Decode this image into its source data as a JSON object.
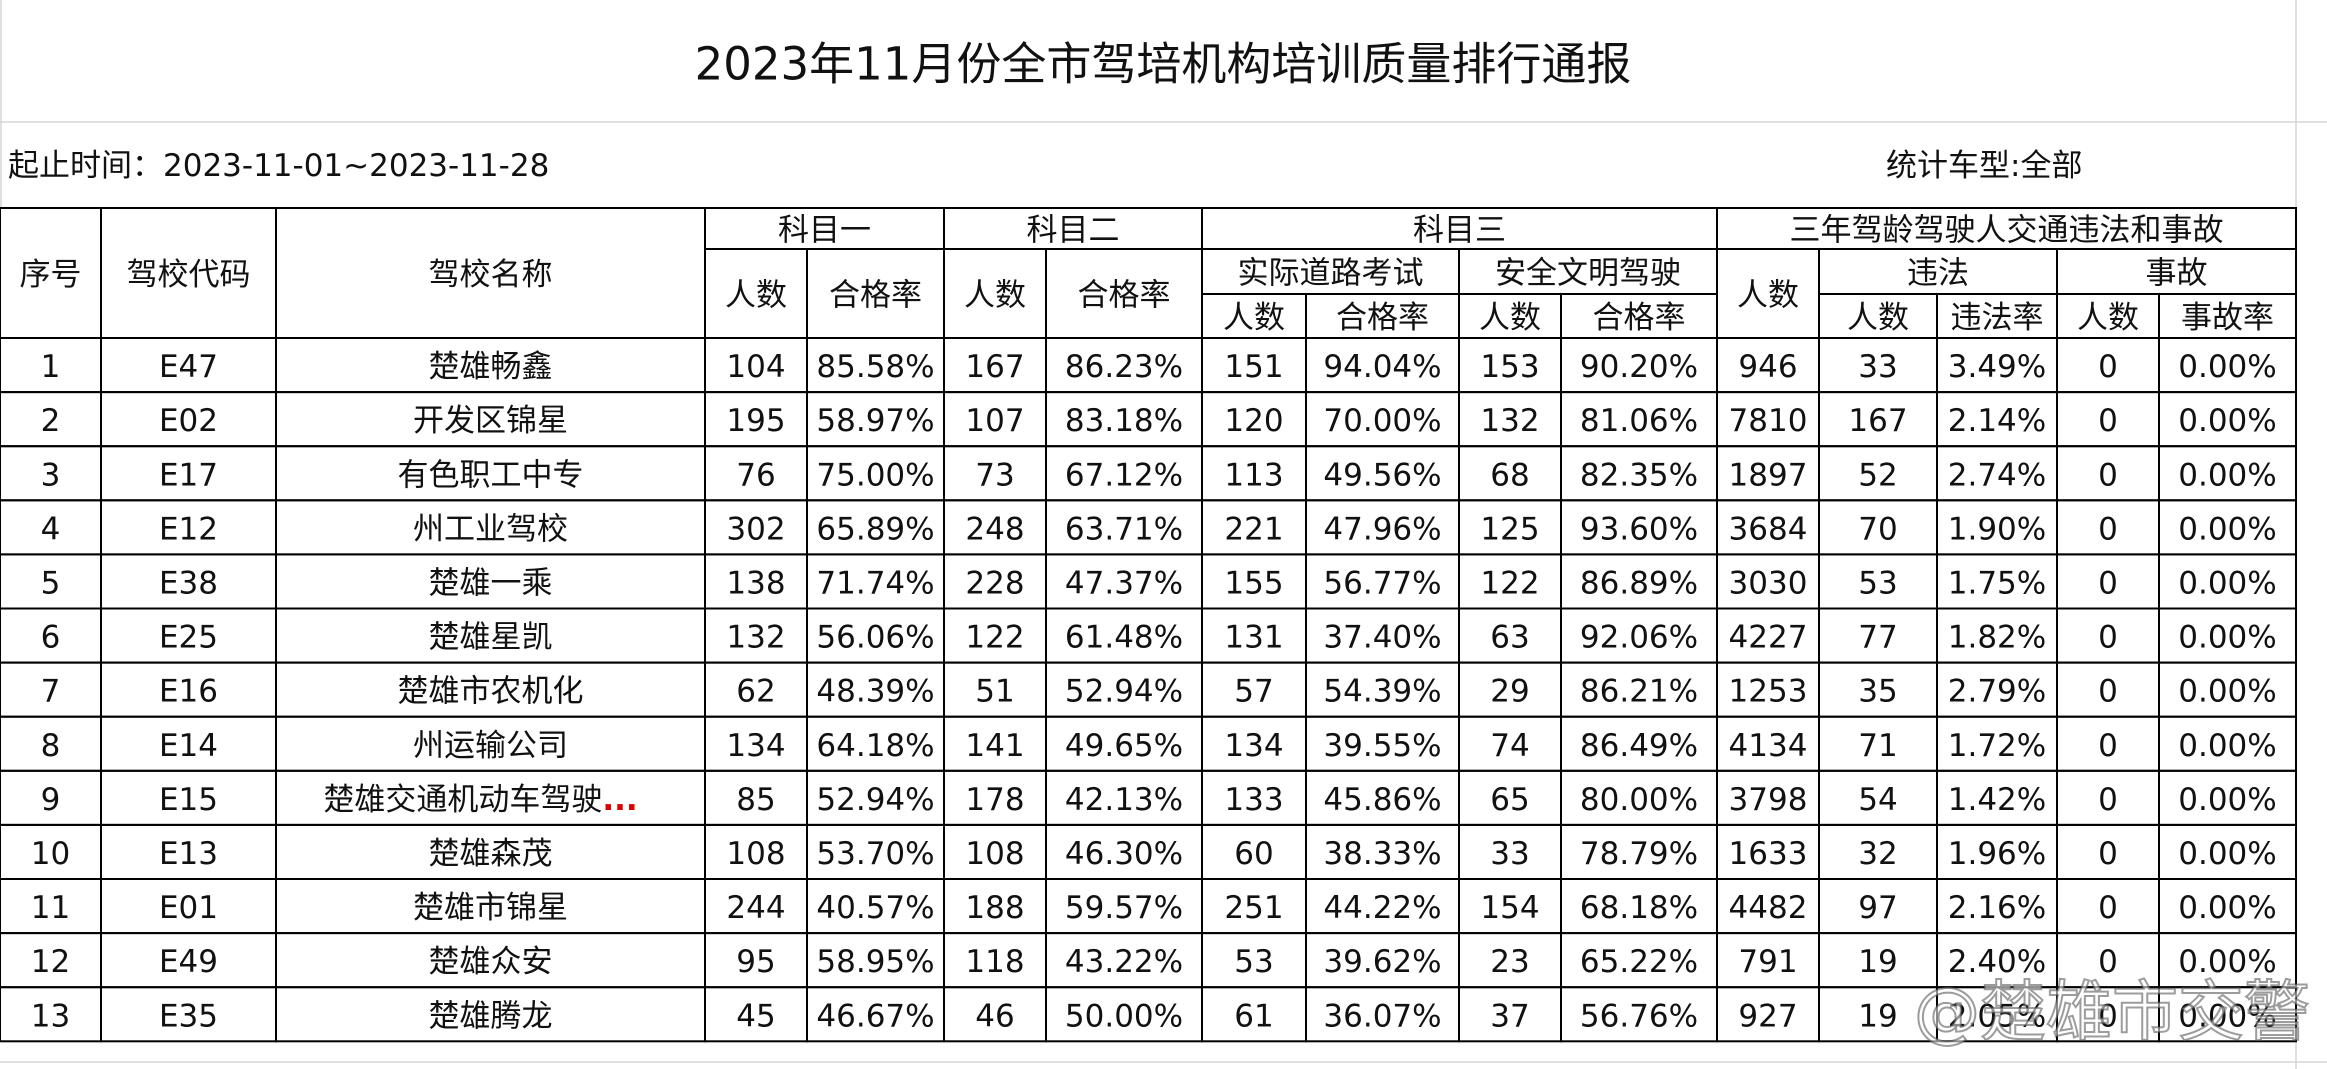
{
  "title": "2023年11月份全市驾培机构培训质量排行通报",
  "period": "起止时间：2023-11-01~2023-11-28",
  "vehicle_type": "统计车型:全部",
  "header": {
    "cells": [
      "序号",
      "驾校代码",
      "驾校名称",
      "科目一",
      "科目二",
      "科目三",
      "三年驾龄驾驶人交通违法和事故",
      "人数",
      "合格率",
      "人数",
      "合格率",
      "实际道路考试",
      "安全文明驾驶",
      "人数",
      "违法",
      "事故",
      "人数",
      "合格率",
      "人数",
      "合格率",
      "人数",
      "违法率",
      "人数",
      "事故率"
    ]
  },
  "table": {
    "truncation_mark": "...",
    "truncated_row": 8,
    "rows": [
      [
        1,
        "E47",
        "楚雄畅鑫",
        104,
        "85.58%",
        167,
        "86.23%",
        151,
        "94.04%",
        153,
        "90.20%",
        946,
        33,
        "3.49%",
        0,
        "0.00%"
      ],
      [
        2,
        "E02",
        "开发区锦星",
        195,
        "58.97%",
        107,
        "83.18%",
        120,
        "70.00%",
        132,
        "81.06%",
        7810,
        167,
        "2.14%",
        0,
        "0.00%"
      ],
      [
        3,
        "E17",
        "有色职工中专",
        76,
        "75.00%",
        73,
        "67.12%",
        113,
        "49.56%",
        68,
        "82.35%",
        1897,
        52,
        "2.74%",
        0,
        "0.00%"
      ],
      [
        4,
        "E12",
        "州工业驾校",
        302,
        "65.89%",
        248,
        "63.71%",
        221,
        "47.96%",
        125,
        "93.60%",
        3684,
        70,
        "1.90%",
        0,
        "0.00%"
      ],
      [
        5,
        "E38",
        "楚雄一乘",
        138,
        "71.74%",
        228,
        "47.37%",
        155,
        "56.77%",
        122,
        "86.89%",
        3030,
        53,
        "1.75%",
        0,
        "0.00%"
      ],
      [
        6,
        "E25",
        "楚雄星凯",
        132,
        "56.06%",
        122,
        "61.48%",
        131,
        "37.40%",
        63,
        "92.06%",
        4227,
        77,
        "1.82%",
        0,
        "0.00%"
      ],
      [
        7,
        "E16",
        "楚雄市农机化",
        62,
        "48.39%",
        51,
        "52.94%",
        57,
        "54.39%",
        29,
        "86.21%",
        1253,
        35,
        "2.79%",
        0,
        "0.00%"
      ],
      [
        8,
        "E14",
        "州运输公司",
        134,
        "64.18%",
        141,
        "49.65%",
        134,
        "39.55%",
        74,
        "86.49%",
        4134,
        71,
        "1.72%",
        0,
        "0.00%"
      ],
      [
        9,
        "E15",
        "楚雄交通机动车驾驶",
        85,
        "52.94%",
        178,
        "42.13%",
        133,
        "45.86%",
        65,
        "80.00%",
        3798,
        54,
        "1.42%",
        0,
        "0.00%"
      ],
      [
        10,
        "E13",
        "楚雄森茂",
        108,
        "53.70%",
        108,
        "46.30%",
        60,
        "38.33%",
        33,
        "78.79%",
        1633,
        32,
        "1.96%",
        0,
        "0.00%"
      ],
      [
        11,
        "E01",
        "楚雄市锦星",
        244,
        "40.57%",
        188,
        "59.57%",
        251,
        "44.22%",
        154,
        "68.18%",
        4482,
        97,
        "2.16%",
        0,
        "0.00%"
      ],
      [
        12,
        "E49",
        "楚雄众安",
        95,
        "58.95%",
        118,
        "43.22%",
        53,
        "39.62%",
        23,
        "65.22%",
        791,
        19,
        "2.40%",
        0,
        "0.00%"
      ],
      [
        13,
        "E35",
        "楚雄腾龙",
        45,
        "46.67%",
        46,
        "50.00%",
        61,
        "36.07%",
        37,
        "56.76%",
        927,
        19,
        "2.05%",
        0,
        "0.00%"
      ]
    ]
  },
  "watermark": "@楚雄市交警"
}
